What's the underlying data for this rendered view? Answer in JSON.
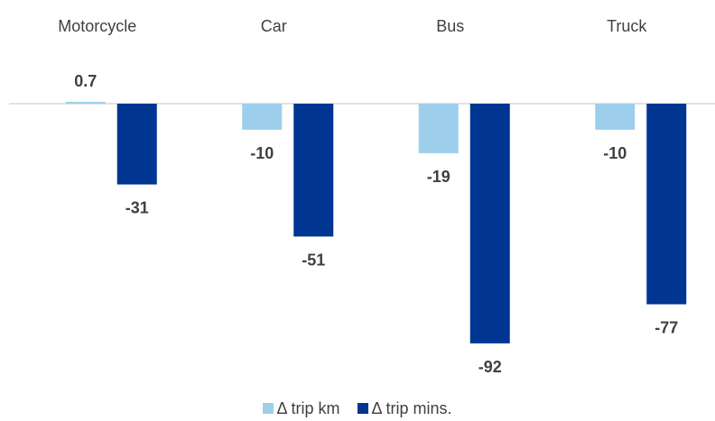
{
  "chart_data": {
    "type": "bar",
    "categories": [
      "Motorcycle",
      "Car",
      "Bus",
      "Truck"
    ],
    "series": [
      {
        "name": "Δ trip km",
        "values": [
          0.7,
          -10,
          -19,
          -10
        ],
        "labels": [
          "0.7",
          "-10",
          "-19",
          "-10"
        ],
        "color": "#9dcfec"
      },
      {
        "name": "Δ trip mins.",
        "values": [
          -31,
          -51,
          -92,
          -77
        ],
        "labels": [
          "-31",
          "-51",
          "-92",
          "-77"
        ],
        "color": "#003591"
      }
    ],
    "category_axis_position": "top",
    "legend_position": "bottom",
    "grid": false,
    "axis_line_color": "#d9d9d9",
    "title": "",
    "xlabel": "",
    "ylabel": ""
  }
}
